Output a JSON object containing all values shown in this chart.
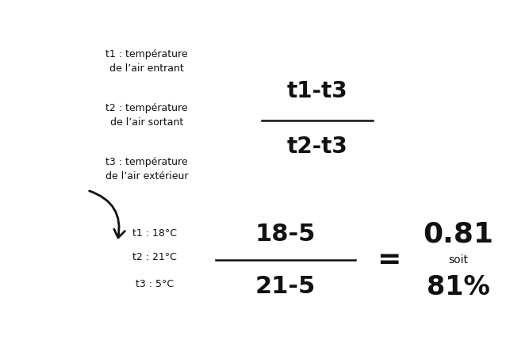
{
  "bg_color": "#ffffff",
  "text_color": "#111111",
  "figsize": [
    6.43,
    4.29
  ],
  "dpi": 100,
  "legend_lines": [
    "t1 : température\nde l’air entrant",
    "t2 : température\nde l’air sortant",
    "t3 : température\nde l’air extérieur"
  ],
  "formula_numerator": "t1-t3",
  "formula_denominator": "t2-t3",
  "example_labels": [
    "t1 : 18°C",
    "t2 : 21°C",
    "t3 : 5°C"
  ],
  "example_numerator": "18-5",
  "example_denominator": "21-5",
  "result_main": "0.81",
  "result_sub1": "soit",
  "result_sub2": "81%",
  "formula_fontsize": 20,
  "example_fontsize": 22,
  "result_main_fontsize": 26,
  "result_sub_fontsize": 10,
  "result_pct_fontsize": 24,
  "legend_fontsize": 9,
  "example_label_fontsize": 9,
  "line_color": "#111111",
  "line_lw": 1.8,
  "equals_fontsize": 26
}
